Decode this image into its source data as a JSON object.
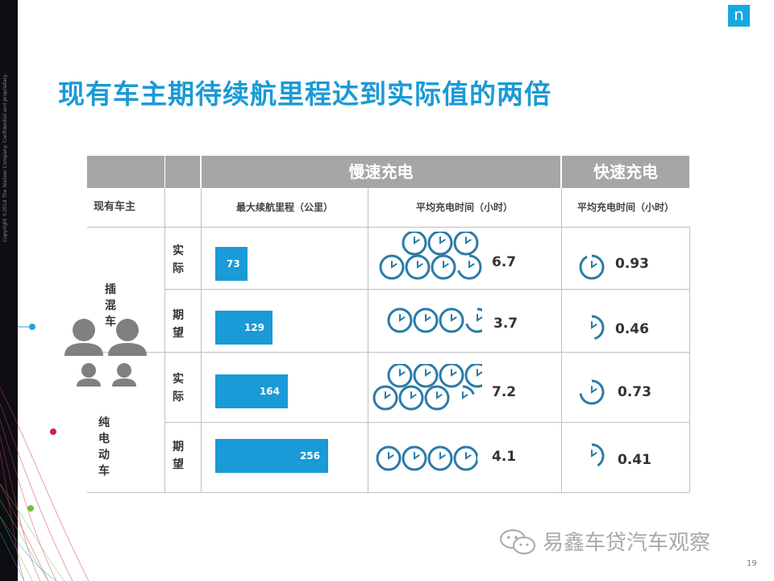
{
  "logo": "n",
  "copyright": "Copyright ©2014 The Nielsen Company. Confidential and proprietary.",
  "title": "现有车主期待续航里程达到实际值的两倍",
  "table": {
    "group_slow": "慢速充电",
    "group_fast": "快速充电",
    "col_owner": "现有车主",
    "col_range": "最大续航里程（公里）",
    "col_slow_time": "平均充电时间（小时）",
    "col_fast_time": "平均充电时间（小时）"
  },
  "chart_data": {
    "type": "table",
    "title": "现有车主期待续航里程达到实际值的两倍",
    "groups": [
      {
        "name": "插混车",
        "rows": [
          {
            "label": "实际",
            "range_km": 73,
            "slow_hours": 6.7,
            "fast_hours": 0.93
          },
          {
            "label": "期望",
            "range_km": 129,
            "slow_hours": 3.7,
            "fast_hours": 0.46
          }
        ]
      },
      {
        "name": "纯电动车",
        "rows": [
          {
            "label": "实际",
            "range_km": 164,
            "slow_hours": 7.2,
            "fast_hours": 0.73
          },
          {
            "label": "期望",
            "range_km": 256,
            "slow_hours": 4.1,
            "fast_hours": 0.41
          }
        ]
      }
    ],
    "bar_max": 256
  },
  "labels": {
    "g0": "插混车",
    "g1": "纯电动车",
    "g0r0": "实际",
    "g0r1": "期望",
    "g1r0": "实际",
    "g1r1": "期望",
    "v_range": [
      "73",
      "129",
      "164",
      "256"
    ],
    "v_slow": [
      "6.7",
      "3.7",
      "7.2",
      "4.1"
    ],
    "v_fast": [
      "0.93",
      "0.46",
      "0.73",
      "0.41"
    ]
  },
  "footer": "易鑫车贷汽车观察",
  "page_number": "19",
  "colors": {
    "accent": "#1a9ad6",
    "header": "#a6a6a6",
    "clock": "#2a7ba8"
  },
  "icons": [
    "clock-icon",
    "person-icon",
    "wechat-icon"
  ]
}
